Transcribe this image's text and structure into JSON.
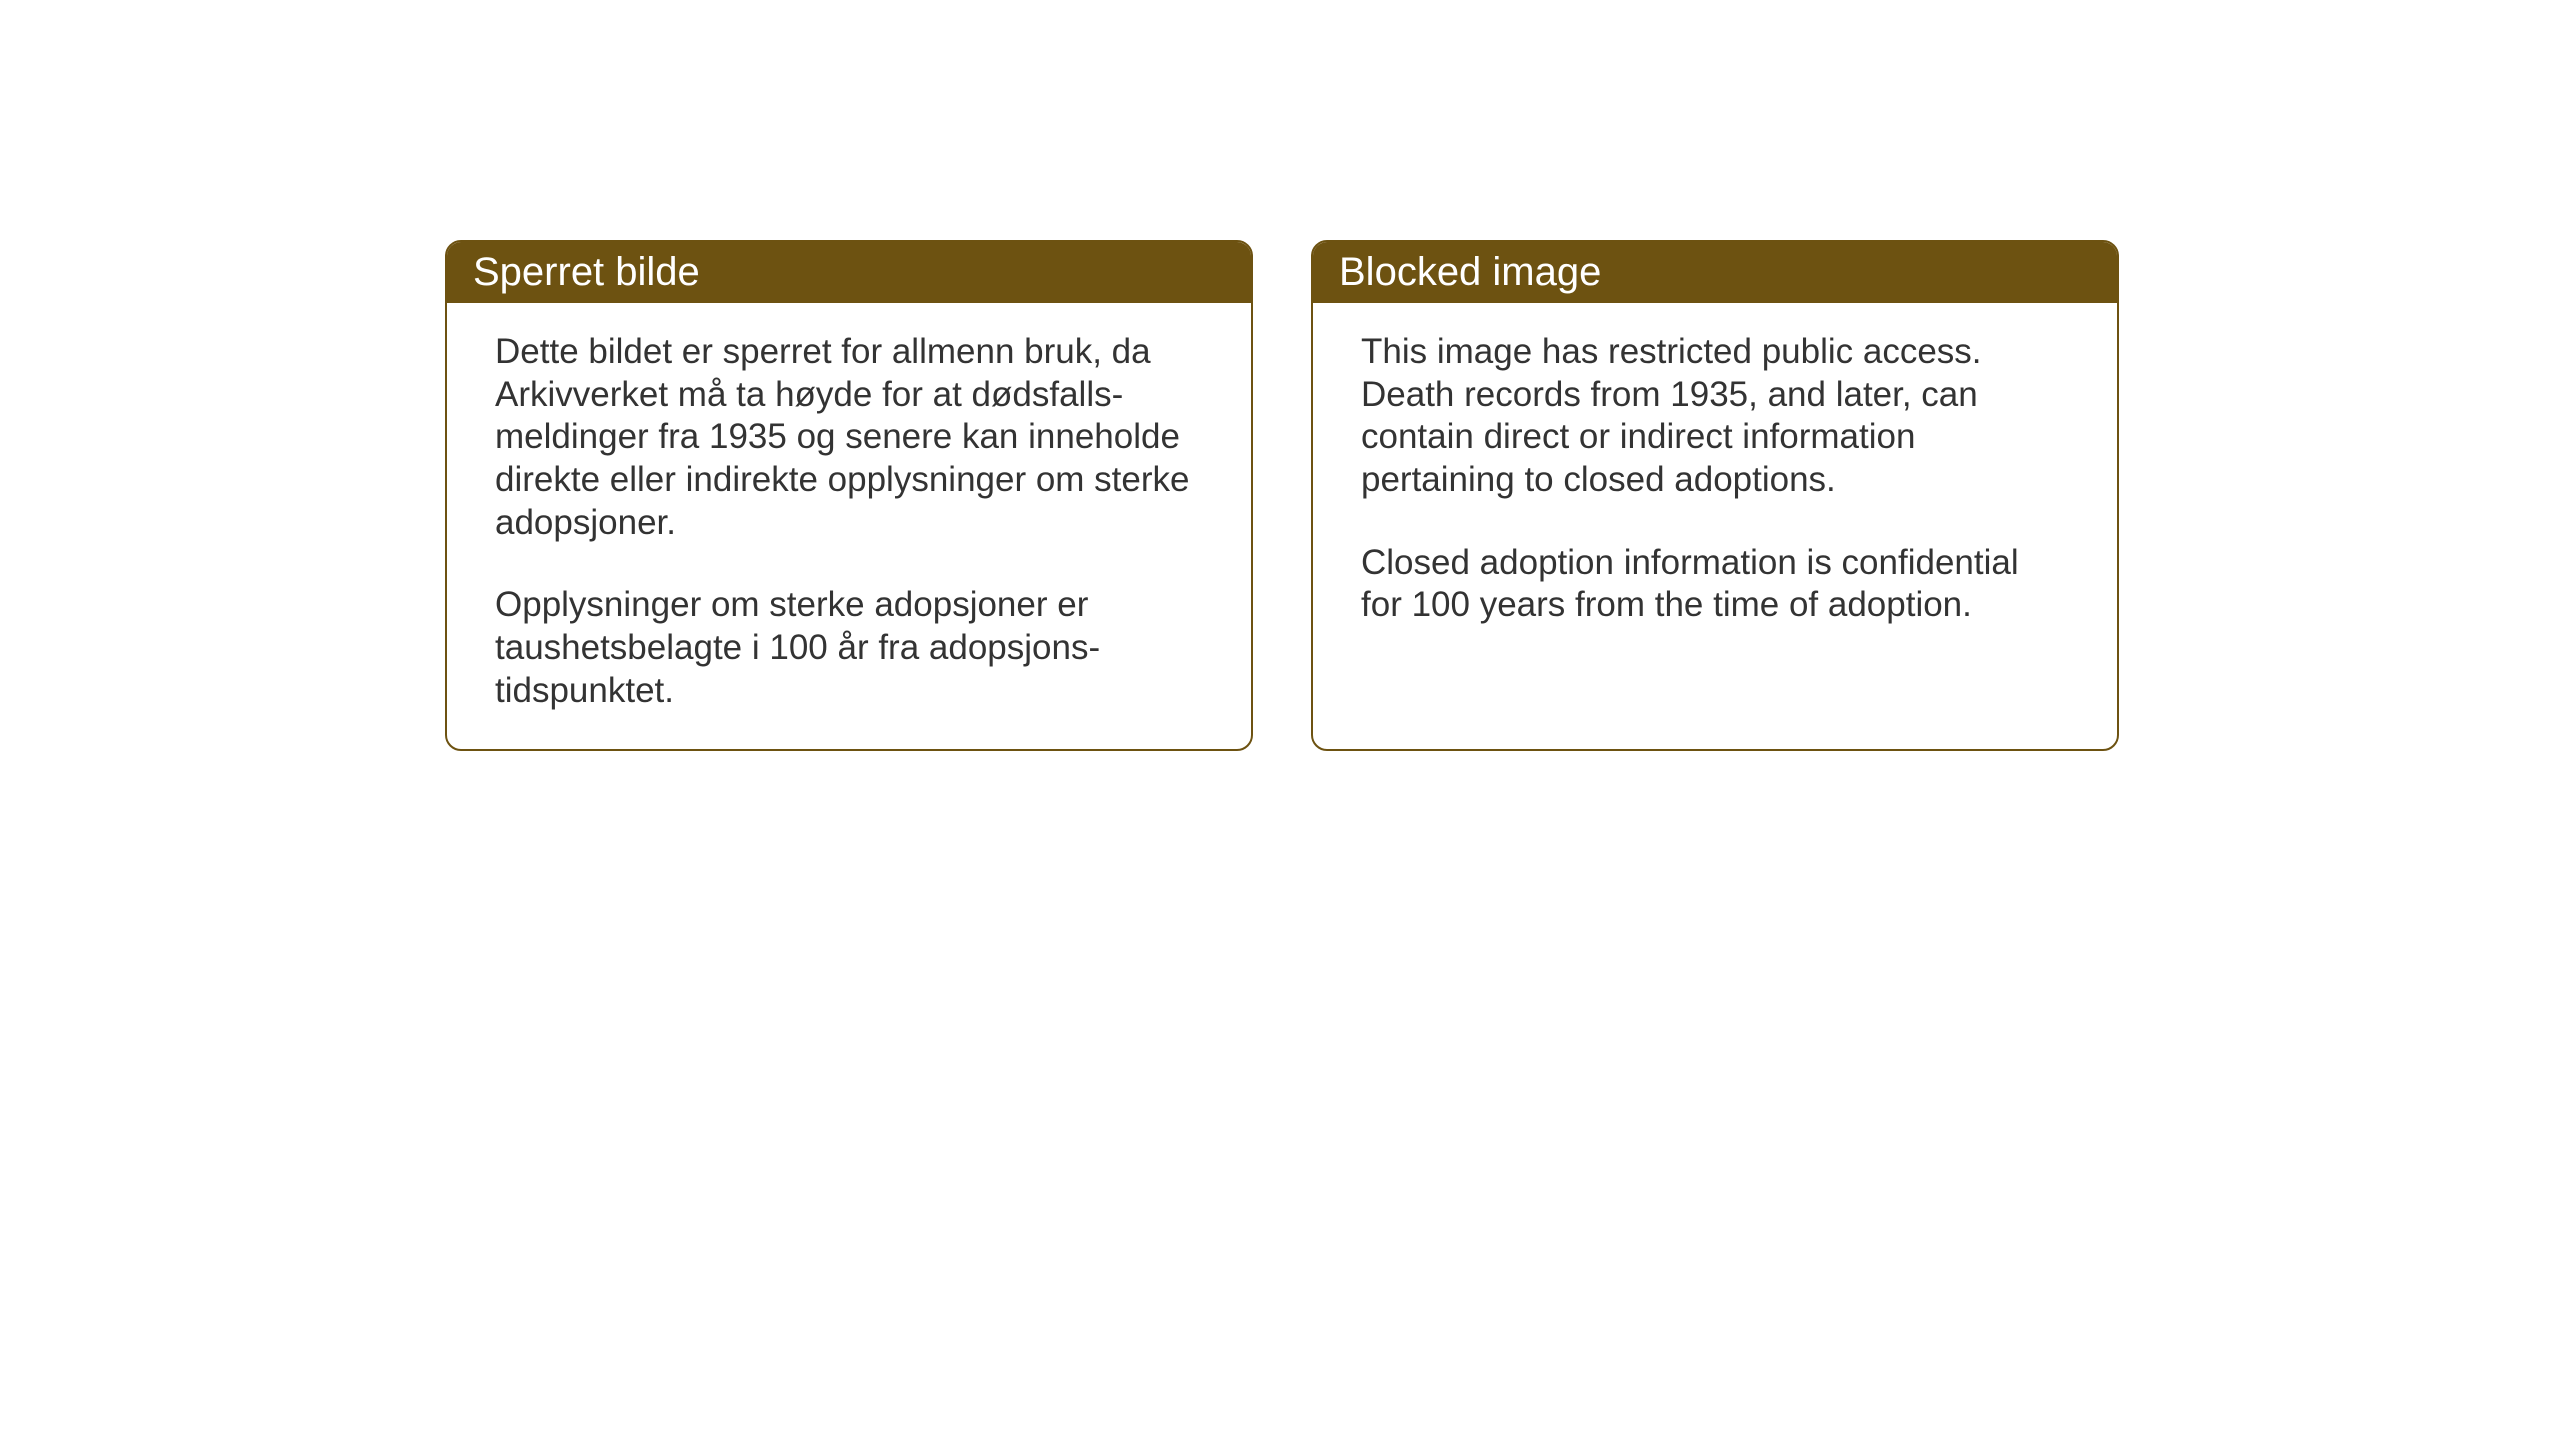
{
  "cards": {
    "norwegian": {
      "title": "Sperret bilde",
      "paragraph1": "Dette bildet er sperret for allmenn bruk, da Arkivverket må ta høyde for at dødsfalls-meldinger fra 1935 og senere kan inneholde direkte eller indirekte opplysninger om sterke adopsjoner.",
      "paragraph2": "Opplysninger om sterke adopsjoner er taushetsbelagte i 100 år fra adopsjons-tidspunktet."
    },
    "english": {
      "title": "Blocked image",
      "paragraph1": "This image has restricted public access. Death records from 1935, and later, can contain direct or indirect information pertaining to closed adoptions.",
      "paragraph2": "Closed adoption information is confidential for 100 years from the time of adoption."
    }
  },
  "styling": {
    "header_background": "#6d5211",
    "header_text_color": "#ffffff",
    "border_color": "#6d5211",
    "body_background": "#ffffff",
    "body_text_color": "#333333",
    "title_fontsize": 40,
    "body_fontsize": 35,
    "border_radius": 16,
    "border_width": 2
  }
}
